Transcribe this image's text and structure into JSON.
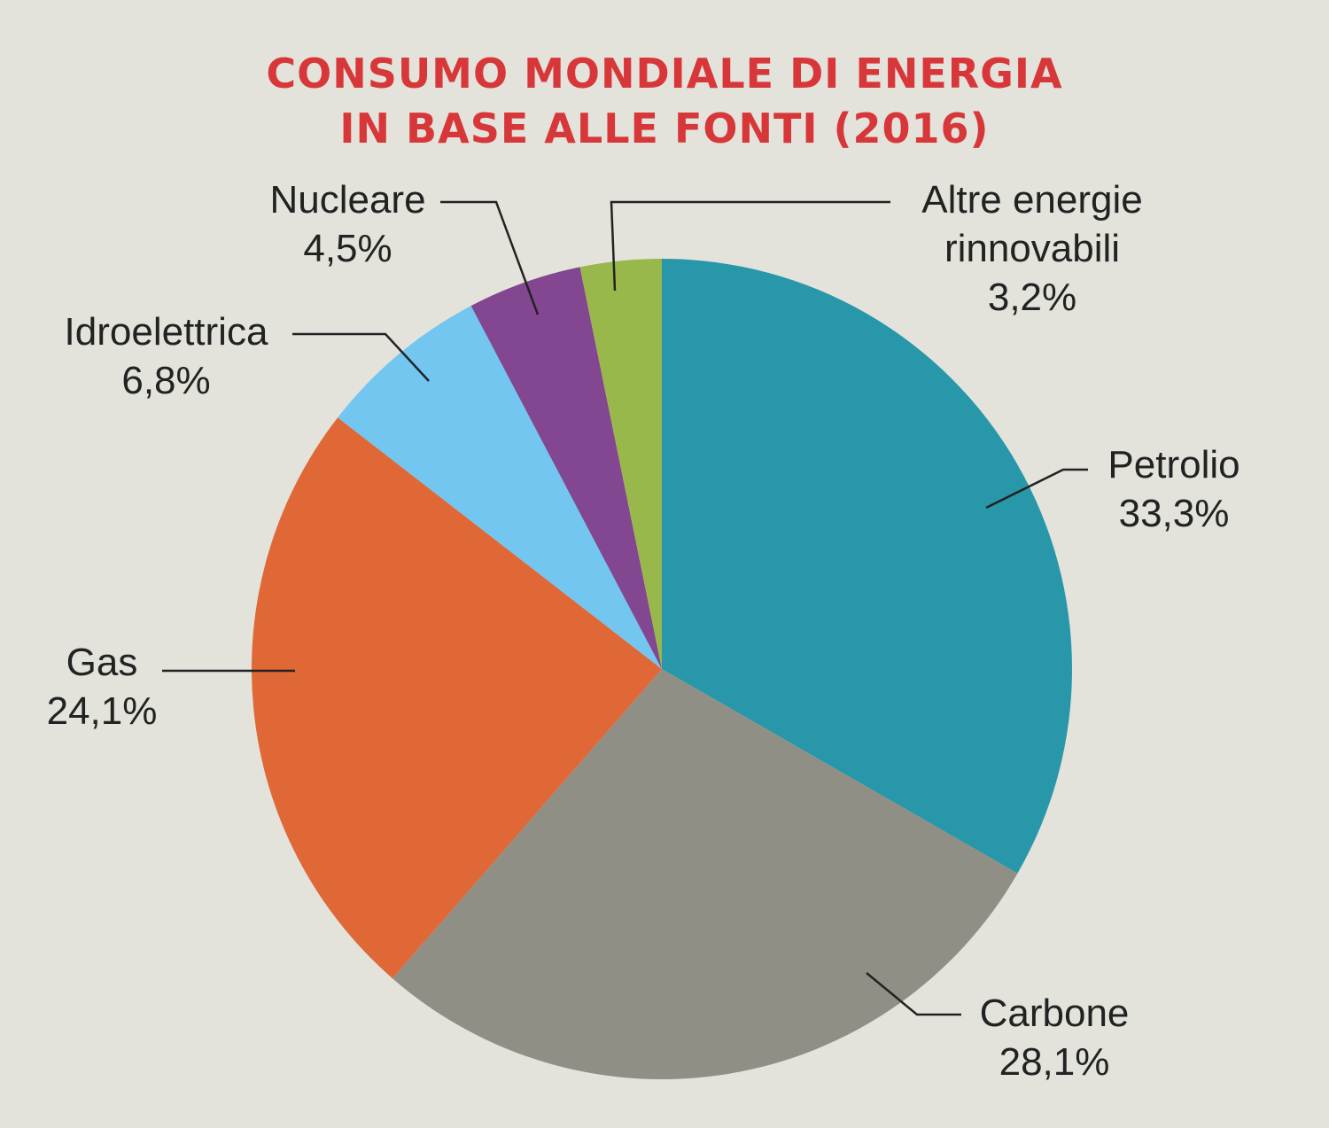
{
  "chart_data": {
    "type": "pie",
    "title_lines": [
      "CONSUMO MONDIALE DI ENERGIA",
      "IN BASE ALLE FONTI (2016)"
    ],
    "start": "12 o'clock",
    "direction": "clockwise",
    "slices": [
      {
        "key": "petrolio",
        "name_lines": [
          "Petrolio"
        ],
        "value_label": "33,3%",
        "value": 33.3,
        "color": "#2897a9"
      },
      {
        "key": "carbone",
        "name_lines": [
          "Carbone"
        ],
        "value_label": "28,1%",
        "value": 28.1,
        "color": "#8f8f86"
      },
      {
        "key": "gas",
        "name_lines": [
          "Gas"
        ],
        "value_label": "24,1%",
        "value": 24.1,
        "color": "#e06836"
      },
      {
        "key": "idroelettrica",
        "name_lines": [
          "Idroelettrica"
        ],
        "value_label": "6,8%",
        "value": 6.8,
        "color": "#73c6ef"
      },
      {
        "key": "nucleare",
        "name_lines": [
          "Nucleare"
        ],
        "value_label": "4,5%",
        "value": 4.5,
        "color": "#834690"
      },
      {
        "key": "altre",
        "name_lines": [
          "Altre energie",
          "rinnovabili"
        ],
        "value_label": "3,2%",
        "value": 3.2,
        "color": "#99b84b"
      }
    ]
  }
}
